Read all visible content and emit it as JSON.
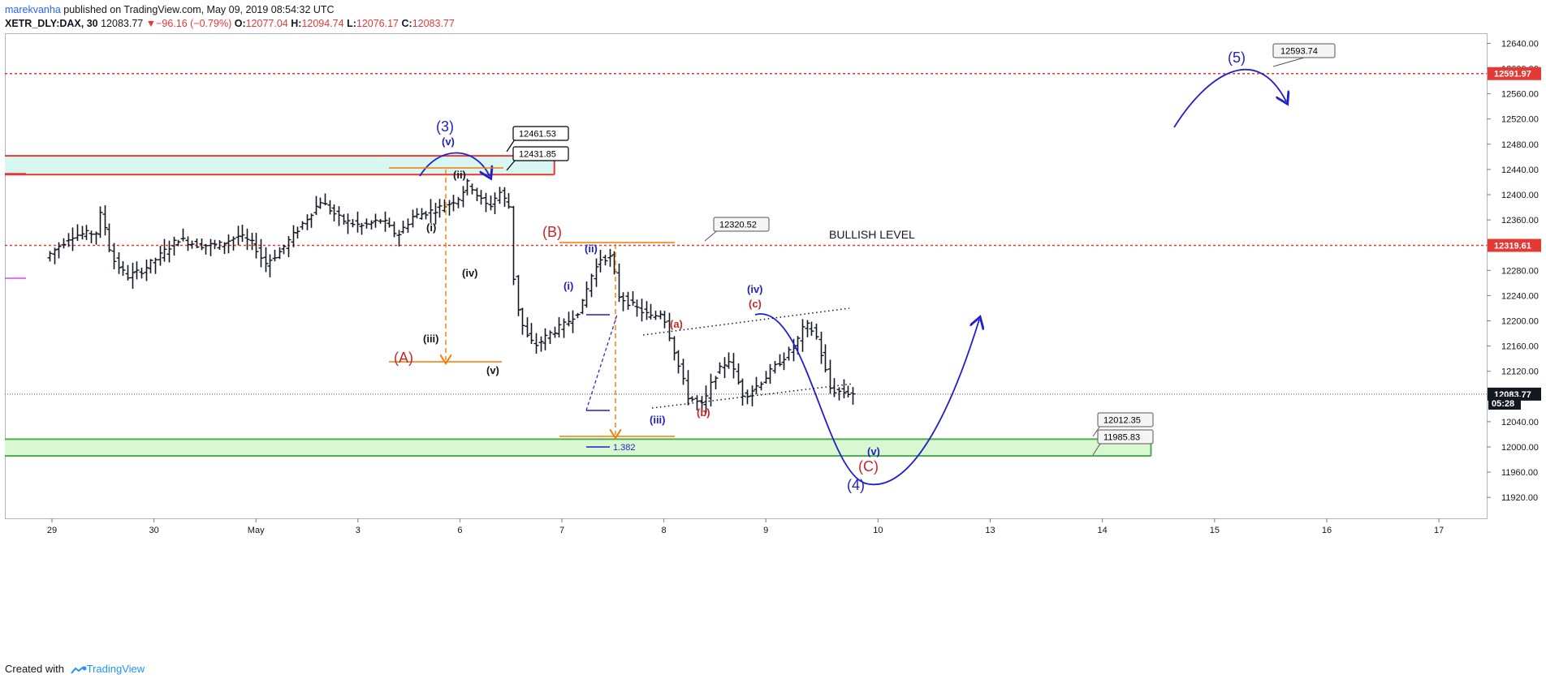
{
  "header": {
    "author": "marekvanha",
    "published_text": "published on TradingView.com, May 09, 2019 08:54:32 UTC",
    "symbol": "XETR_DLY:DAX, 30",
    "last": "12083.77",
    "change_arrow": "▼",
    "change": "−96.16 (−0.79%)",
    "o_label": "O:",
    "o_value": "12077.04",
    "h_label": "H:",
    "h_value": "12094.74",
    "l_label": "L:",
    "l_value": "12076.17",
    "c_label": "C:",
    "c_value": "12083.77"
  },
  "footer": {
    "created_with": "Created with",
    "brand": "TradingView"
  },
  "colors": {
    "bear": "#e53935",
    "wave_blue": "#1f1fcc",
    "wave_red": "#c62828",
    "orange": "#f57c00",
    "zone_red": "#e53935",
    "zone_green": "#4caf50"
  },
  "chart_data": {
    "type": "candlestick",
    "title": "",
    "ylim": [
      11880,
      12660
    ],
    "y_ticks": [
      11920,
      11960,
      12000,
      12040,
      12080,
      12120,
      12160,
      12200,
      12240,
      12280,
      12320,
      12360,
      12400,
      12440,
      12480,
      12520,
      12560,
      12600,
      12640
    ],
    "y_tick_labels": [
      "11920.00",
      "11960.00",
      "12000.00",
      "12040.00",
      "12080.00",
      "12120.00",
      "12160.00",
      "12200.00",
      "12240.00",
      "12280.00",
      "12320.00",
      "12360.00",
      "12400.00",
      "12440.00",
      "12480.00",
      "12520.00",
      "12560.00",
      "12600.00",
      "12640.00"
    ],
    "x_ticks": [
      {
        "label": "29",
        "t": 0.5
      },
      {
        "label": "30",
        "t": 1.5
      },
      {
        "label": "May",
        "t": 2.5
      },
      {
        "label": "3",
        "t": 3.5
      },
      {
        "label": "6",
        "t": 4.5
      },
      {
        "label": "7",
        "t": 5.5
      },
      {
        "label": "8",
        "t": 6.5
      },
      {
        "label": "9",
        "t": 7.5
      },
      {
        "label": "10",
        "t": 8.6
      },
      {
        "label": "13",
        "t": 9.7
      },
      {
        "label": "14",
        "t": 10.8
      },
      {
        "label": "15",
        "t": 11.9
      },
      {
        "label": "16",
        "t": 13.0
      },
      {
        "label": "17",
        "t": 14.1
      }
    ],
    "price_tags": [
      {
        "label": "12591.97",
        "value": 12591.97,
        "bg": "#e53935"
      },
      {
        "label": "12319.61",
        "value": 12319.61,
        "bg": "#e53935"
      },
      {
        "label": "12083.77",
        "value": 12083.77,
        "bg": "#131722"
      }
    ],
    "countdown": "05:28",
    "path": [
      [
        0,
        12300
      ],
      [
        0.25,
        12335
      ],
      [
        0.5,
        12340
      ],
      [
        0.55,
        12375
      ],
      [
        0.65,
        12300
      ],
      [
        0.8,
        12270
      ],
      [
        0.95,
        12280
      ],
      [
        1.1,
        12300
      ],
      [
        1.3,
        12330
      ],
      [
        1.5,
        12320
      ],
      [
        1.7,
        12320
      ],
      [
        1.9,
        12335
      ],
      [
        2.05,
        12320
      ],
      [
        2.15,
        12290
      ],
      [
        2.3,
        12310
      ],
      [
        2.5,
        12350
      ],
      [
        2.7,
        12390
      ],
      [
        2.9,
        12360
      ],
      [
        3.1,
        12350
      ],
      [
        3.3,
        12360
      ],
      [
        3.45,
        12335
      ],
      [
        3.6,
        12365
      ],
      [
        3.8,
        12375
      ],
      [
        3.95,
        12385
      ],
      [
        4.05,
        12395
      ],
      [
        4.15,
        12420
      ],
      [
        4.25,
        12395
      ],
      [
        4.35,
        12380
      ],
      [
        4.45,
        12405
      ],
      [
        4.55,
        12380
      ],
      [
        4.6,
        12240
      ],
      [
        4.7,
        12180
      ],
      [
        4.8,
        12160
      ],
      [
        4.95,
        12180
      ],
      [
        5.1,
        12195
      ],
      [
        5.25,
        12220
      ],
      [
        5.35,
        12270
      ],
      [
        5.45,
        12300
      ],
      [
        5.55,
        12300
      ],
      [
        5.62,
        12240
      ],
      [
        5.8,
        12220
      ],
      [
        5.95,
        12205
      ],
      [
        6.05,
        12215
      ],
      [
        6.15,
        12160
      ],
      [
        6.3,
        12080
      ],
      [
        6.45,
        12065
      ],
      [
        6.55,
        12110
      ],
      [
        6.7,
        12140
      ],
      [
        6.85,
        12080
      ],
      [
        7.0,
        12100
      ],
      [
        7.2,
        12135
      ],
      [
        7.35,
        12160
      ],
      [
        7.45,
        12195
      ],
      [
        7.55,
        12180
      ],
      [
        7.7,
        12090
      ],
      [
        7.9,
        12085
      ]
    ],
    "zones": [
      {
        "name": "red-zone",
        "y1": 12461.53,
        "y2": 12431.85,
        "x1": -0.45,
        "x2": 4.95
      },
      {
        "name": "green-zone",
        "y1": 12012.35,
        "y2": 11985.83,
        "x1": -0.45,
        "x2": 10.8
      }
    ],
    "h_lines": [
      {
        "name": "bullish-level-line",
        "value": 12319.61,
        "style": "dashed",
        "color": "#e53935"
      },
      {
        "name": "target-level-line",
        "value": 12591.97,
        "style": "dashed",
        "color": "#e53935"
      },
      {
        "name": "last-price-line",
        "value": 12083.77,
        "style": "dotted",
        "color": "#555555"
      }
    ],
    "line_label": "BULLISH LEVEL",
    "callouts": [
      "12593.74",
      "12461.53",
      "12431.85",
      "12320.52",
      "12012.35",
      "11985.83"
    ],
    "fib_label": "1.382",
    "wave_labels": [
      {
        "text": "(5)",
        "color": "blue"
      },
      {
        "text": "(3)",
        "color": "blue"
      },
      {
        "text": "(v)",
        "color": "blue"
      },
      {
        "text": "(ii)",
        "color": "black"
      },
      {
        "text": "(i)",
        "color": "black"
      },
      {
        "text": "(iv)",
        "color": "black"
      },
      {
        "text": "(iii)",
        "color": "black"
      },
      {
        "text": "(A)",
        "color": "red"
      },
      {
        "text": "(v)",
        "color": "black"
      },
      {
        "text": "(B)",
        "color": "red"
      },
      {
        "text": "(ii)",
        "color": "blue"
      },
      {
        "text": "(i)",
        "color": "blue"
      },
      {
        "text": "(a)",
        "color": "red"
      },
      {
        "text": "(iv)",
        "color": "blue"
      },
      {
        "text": "(c)",
        "color": "red"
      },
      {
        "text": "(b)",
        "color": "red"
      },
      {
        "text": "(iii)",
        "color": "blue"
      },
      {
        "text": "(v)",
        "color": "blue"
      },
      {
        "text": "(C)",
        "color": "red"
      },
      {
        "text": "(4)",
        "color": "blue"
      }
    ]
  }
}
